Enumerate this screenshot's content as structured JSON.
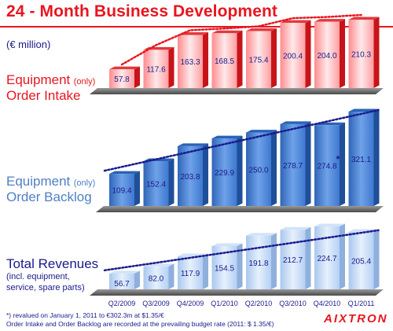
{
  "title": "24 - Month Business Development",
  "unit": "(€ million)",
  "labels": {
    "intake_big": "Equipment",
    "intake_small": "(only)",
    "intake_line2": "Order Intake",
    "backlog_big": "Equipment",
    "backlog_small": "(only)",
    "backlog_line2": "Order Backlog",
    "revenue_line1": "Total Revenues",
    "revenue_sub1": "(incl. equipment,",
    "revenue_sub2": "service, spare parts)"
  },
  "footnotes": {
    "line1": "*) revalued on January 1, 2011 to €302.3m at $1.35/€",
    "line2": "Order Intake and Order Backlog are recorded at the prevailing budget rate (2011: $ 1.35/€)"
  },
  "logo": "AIXTRON",
  "colors": {
    "title_red": "#e8161f",
    "navy": "#1a1a8c",
    "intake_bar": "#f24a4f",
    "backlog_bar": "#3b78d4",
    "revenue_bar": "#bcd6f7"
  },
  "chart_data": [
    {
      "type": "bar",
      "name": "Equipment (only) Order Intake",
      "categories": [
        "Q2/2009",
        "Q3/2009",
        "Q4/2009",
        "Q1/2010",
        "Q2/2010",
        "Q3/2010",
        "Q4/2010",
        "Q1/2011"
      ],
      "values": [
        57.8,
        117.6,
        163.3,
        168.5,
        175.4,
        200.4,
        204.0,
        210.3
      ],
      "value_labels": [
        "57.8",
        "117.6",
        "163.3",
        "168.5",
        "175.4",
        "200.4",
        "204.0",
        "210.3"
      ],
      "trendline": "dotted red curve",
      "color": "#f24a4f"
    },
    {
      "type": "bar",
      "name": "Equipment (only) Order Backlog",
      "categories": [
        "Q2/2009",
        "Q3/2009",
        "Q4/2009",
        "Q1/2010",
        "Q2/2010",
        "Q3/2010",
        "Q4/2010",
        "Q1/2011"
      ],
      "values": [
        109.4,
        152.4,
        203.8,
        229.9,
        250.0,
        278.7,
        274.8,
        321.1
      ],
      "value_labels": [
        "109.4",
        "152.4",
        "203.8",
        "229.9",
        "250.0",
        "278.7",
        "274.8",
        "321.1"
      ],
      "annotation": {
        "category": "Q4/2010",
        "mark": "*"
      },
      "trendline": "dotted navy line",
      "color": "#3b78d4"
    },
    {
      "type": "bar",
      "name": "Total Revenues",
      "categories": [
        "Q2/2009",
        "Q3/2009",
        "Q4/2009",
        "Q1/2010",
        "Q2/2010",
        "Q3/2010",
        "Q4/2010",
        "Q1/2011"
      ],
      "values": [
        56.7,
        82.0,
        117.9,
        154.5,
        191.8,
        212.7,
        224.7,
        205.4
      ],
      "value_labels": [
        "56.7",
        "82.0",
        "117.9",
        "154.5",
        "191.8",
        "212.7",
        "224.7",
        "205.4"
      ],
      "trendline": "dotted navy line",
      "color": "#bcd6f7"
    }
  ]
}
